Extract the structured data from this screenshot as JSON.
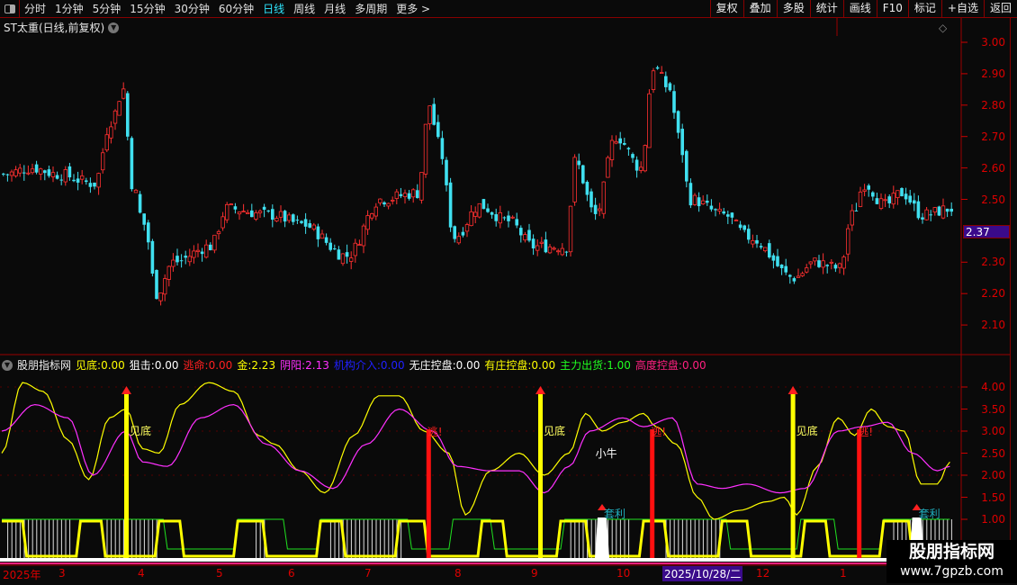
{
  "toolbar": {
    "periods": [
      "分时",
      "1分钟",
      "5分钟",
      "15分钟",
      "30分钟",
      "60分钟",
      "日线",
      "周线",
      "月线",
      "多周期",
      "更多 >"
    ],
    "active_period": "日线",
    "right_buttons": [
      "复权",
      "叠加",
      "多股",
      "统计",
      "画线",
      "F10",
      "标记",
      "+自选",
      "返回"
    ]
  },
  "stock_title": "ST太重(日线,前复权)",
  "price_axis": [
    "3.00",
    "2.90",
    "2.80",
    "2.70",
    "2.60",
    "2.50",
    "2.30",
    "2.20",
    "2.10"
  ],
  "current_price": "2.37",
  "price_waypoints": [
    [
      0,
      2.58
    ],
    [
      7,
      2.6
    ],
    [
      13,
      2.58
    ],
    [
      22,
      2.55
    ],
    [
      26,
      2.75
    ],
    [
      29,
      2.85
    ],
    [
      31,
      2.55
    ],
    [
      34,
      2.42
    ],
    [
      37,
      2.2
    ],
    [
      41,
      2.3
    ],
    [
      50,
      2.35
    ],
    [
      54,
      2.47
    ],
    [
      65,
      2.45
    ],
    [
      72,
      2.42
    ],
    [
      83,
      2.32
    ],
    [
      91,
      2.5
    ],
    [
      100,
      2.52
    ],
    [
      103,
      2.8
    ],
    [
      105,
      2.68
    ],
    [
      109,
      2.38
    ],
    [
      115,
      2.48
    ],
    [
      122,
      2.43
    ],
    [
      128,
      2.35
    ],
    [
      136,
      2.35
    ],
    [
      138,
      2.62
    ],
    [
      143,
      2.45
    ],
    [
      148,
      2.7
    ],
    [
      154,
      2.6
    ],
    [
      157,
      2.92
    ],
    [
      161,
      2.85
    ],
    [
      163,
      2.7
    ],
    [
      166,
      2.5
    ],
    [
      174,
      2.45
    ],
    [
      180,
      2.38
    ],
    [
      191,
      2.25
    ],
    [
      196,
      2.3
    ],
    [
      202,
      2.28
    ],
    [
      205,
      2.45
    ],
    [
      208,
      2.55
    ],
    [
      213,
      2.48
    ],
    [
      217,
      2.52
    ],
    [
      222,
      2.45
    ],
    [
      229,
      2.47
    ]
  ],
  "indicator": {
    "name": "股朋指标网",
    "items": [
      {
        "label": "见底:",
        "value": "0.00",
        "color": "#ffff00"
      },
      {
        "label": "狙击:",
        "value": "0.00",
        "color": "#ffffff"
      },
      {
        "label": "逃命:",
        "value": "0.00",
        "color": "#ff2020"
      },
      {
        "label": "金:",
        "value": "2.23",
        "color": "#ffff00"
      },
      {
        "label": "阴阳:",
        "value": "2.13",
        "color": "#ff30ff"
      },
      {
        "label": "机构介入:",
        "value": "0.00",
        "color": "#2020ff"
      },
      {
        "label": "无庄控盘:",
        "value": "0.00",
        "color": "#ffffff"
      },
      {
        "label": "有庄控盘:",
        "value": "0.00",
        "color": "#ffff00"
      },
      {
        "label": "主力出货:",
        "value": "1.00",
        "color": "#20ff20"
      },
      {
        "label": "高度控盘:",
        "value": "0.00",
        "color": "#ff2080"
      }
    ],
    "axis": [
      "4.00",
      "3.50",
      "3.00",
      "2.50",
      "2.00",
      "1.50",
      "1.00"
    ],
    "yellow_waypoints": [
      [
        0,
        2.5
      ],
      [
        5,
        4.1
      ],
      [
        10,
        3.9
      ],
      [
        16,
        2.8
      ],
      [
        21,
        1.9
      ],
      [
        26,
        3.3
      ],
      [
        30,
        3.5
      ],
      [
        34,
        2.6
      ],
      [
        38,
        2.5
      ],
      [
        43,
        3.6
      ],
      [
        50,
        4.1
      ],
      [
        56,
        3.9
      ],
      [
        62,
        2.9
      ],
      [
        66,
        2.7
      ],
      [
        72,
        2.1
      ],
      [
        78,
        1.6
      ],
      [
        85,
        2.9
      ],
      [
        91,
        3.8
      ],
      [
        96,
        3.8
      ],
      [
        102,
        3.0
      ],
      [
        108,
        2.5
      ],
      [
        112,
        1.1
      ],
      [
        118,
        2.1
      ],
      [
        125,
        2.5
      ],
      [
        131,
        2.0
      ],
      [
        137,
        2.5
      ],
      [
        141,
        3.4
      ],
      [
        145,
        3.0
      ],
      [
        150,
        3.2
      ],
      [
        155,
        3.4
      ],
      [
        158,
        3.1
      ],
      [
        163,
        2.7
      ],
      [
        168,
        1.5
      ],
      [
        172,
        1.0
      ],
      [
        178,
        1.2
      ],
      [
        185,
        1.4
      ],
      [
        189,
        1.5
      ],
      [
        192,
        1.1
      ],
      [
        197,
        2.2
      ],
      [
        202,
        3.3
      ],
      [
        206,
        2.9
      ],
      [
        210,
        3.5
      ],
      [
        214,
        3.1
      ],
      [
        218,
        3.0
      ],
      [
        222,
        1.8
      ],
      [
        226,
        1.8
      ],
      [
        229,
        2.3
      ]
    ],
    "magenta_waypoints": [
      [
        0,
        3.0
      ],
      [
        8,
        3.6
      ],
      [
        16,
        3.3
      ],
      [
        22,
        2.0
      ],
      [
        30,
        3.0
      ],
      [
        34,
        2.3
      ],
      [
        40,
        2.2
      ],
      [
        48,
        3.3
      ],
      [
        56,
        3.6
      ],
      [
        64,
        2.7
      ],
      [
        72,
        2.1
      ],
      [
        80,
        1.7
      ],
      [
        88,
        2.7
      ],
      [
        96,
        3.5
      ],
      [
        104,
        3.0
      ],
      [
        110,
        2.2
      ],
      [
        118,
        2.1
      ],
      [
        125,
        2.1
      ],
      [
        131,
        1.6
      ],
      [
        137,
        2.2
      ],
      [
        142,
        3.0
      ],
      [
        150,
        3.3
      ],
      [
        155,
        3.1
      ],
      [
        162,
        3.3
      ],
      [
        168,
        1.8
      ],
      [
        174,
        1.7
      ],
      [
        180,
        1.8
      ],
      [
        188,
        1.6
      ],
      [
        194,
        1.7
      ],
      [
        202,
        3.0
      ],
      [
        208,
        3.1
      ],
      [
        214,
        3.2
      ],
      [
        220,
        2.5
      ],
      [
        226,
        2.1
      ],
      [
        229,
        2.2
      ]
    ],
    "signals": [
      {
        "day": 30,
        "text": "见底",
        "kind": "bottom"
      },
      {
        "day": 103,
        "text": "逃!",
        "kind": "escape"
      },
      {
        "day": 130,
        "text": "见底",
        "kind": "bottom"
      },
      {
        "day": 146,
        "text": "小牛",
        "kind": "bull"
      },
      {
        "day": 157,
        "text": "逃!",
        "kind": "escape"
      },
      {
        "day": 145,
        "text": "套利",
        "kind": "arb"
      },
      {
        "day": 191,
        "text": "见底",
        "kind": "bottom"
      },
      {
        "day": 207,
        "text": "逃!",
        "kind": "escape"
      },
      {
        "day": 221,
        "text": "套利",
        "kind": "arb"
      }
    ]
  },
  "date_axis": [
    "2025年",
    "3",
    "4",
    "5",
    "6",
    "7",
    "8",
    "9",
    "10",
    "12",
    "1"
  ],
  "crosshair_date": "2025/10/28/二",
  "watermark": {
    "title": "股朋指标网",
    "url": "www.7gpzb.com"
  },
  "colors": {
    "up": "#ff3030",
    "down": "#40e0f0",
    "axis": "#cc0000",
    "active": "#2ee6ff"
  }
}
